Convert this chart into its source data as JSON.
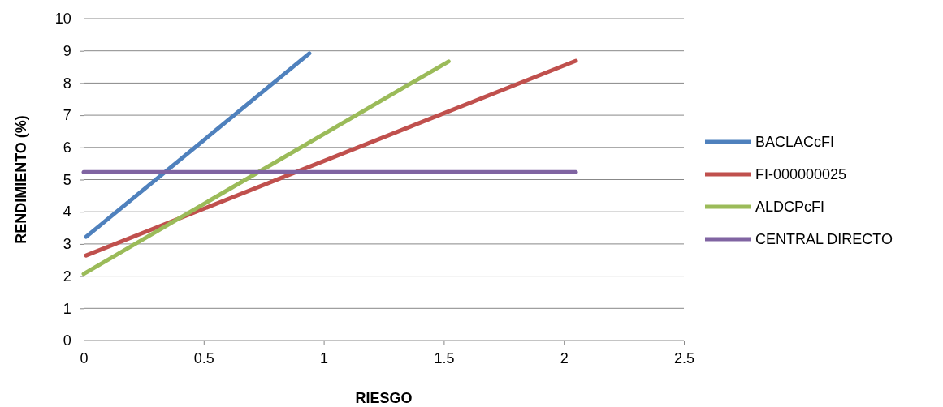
{
  "chart_data": {
    "type": "line",
    "xlabel": "RIESGO",
    "ylabel": "RENDIMIENTO (%)",
    "xlim": [
      0,
      2.5
    ],
    "xticks": [
      0,
      0.5,
      1,
      1.5,
      2,
      2.5
    ],
    "ylim": [
      0,
      10
    ],
    "yticks": [
      0,
      1,
      2,
      3,
      4,
      5,
      6,
      7,
      8,
      9,
      10
    ],
    "grid": "y",
    "legend": "right",
    "marker": "none",
    "line_style": "solid",
    "series": [
      {
        "name": "BACLACcFI",
        "color": "#4f81bd",
        "x": [
          0.01,
          0.94
        ],
        "values": [
          3.22,
          8.92
        ]
      },
      {
        "name": "FI-000000025",
        "color": "#c0504d",
        "x": [
          0.01,
          2.05
        ],
        "values": [
          2.64,
          8.69
        ]
      },
      {
        "name": "ALDCPcFI",
        "color": "#9bbb59",
        "x": [
          0,
          1.52
        ],
        "values": [
          2.07,
          8.67
        ]
      },
      {
        "name": "CENTRAL DIRECTO",
        "color": "#8064a2",
        "x": [
          0,
          2.05
        ],
        "values": [
          5.23,
          5.23
        ]
      }
    ]
  }
}
